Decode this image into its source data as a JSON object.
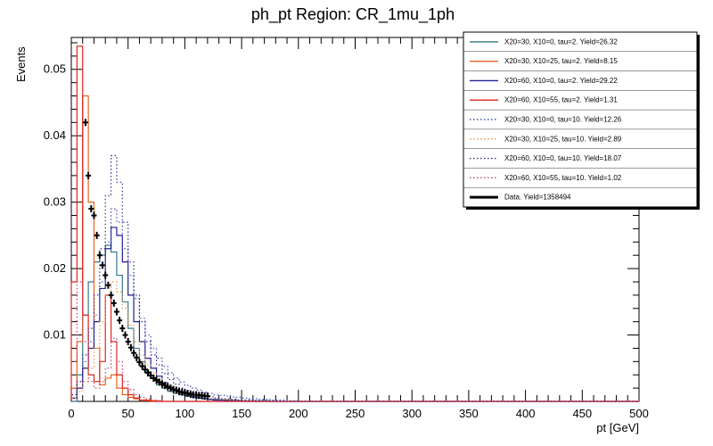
{
  "chart_data": {
    "type": "line",
    "subtype": "root-style step histograms with data points",
    "title": "ph_pt Region: CR_1mu_1ph",
    "xlabel": "pt [GeV]",
    "ylabel": "Events",
    "xlim": [
      0,
      500
    ],
    "ylim": [
      0,
      0.0548
    ],
    "grid": false,
    "legend_position": "top-right",
    "background": "#ffffff",
    "frame_color": "#000000",
    "xticks": {
      "major": [
        0,
        50,
        100,
        150,
        200,
        250,
        300,
        350,
        400,
        450,
        500
      ],
      "labels": [
        "0",
        "50",
        "100",
        "150",
        "200",
        "250",
        "300",
        "350",
        "400",
        "450",
        "500"
      ],
      "minor_step": 10
    },
    "yticks": {
      "major": [
        0.01,
        0.02,
        0.03,
        0.04,
        0.05
      ],
      "labels": [
        "0.01",
        "0.02",
        "0.03",
        "0.04",
        "0.05"
      ],
      "minor_step": 0.002
    },
    "bin_edges": {
      "start": 0,
      "width": 5,
      "count": 40
    },
    "series": [
      {
        "name": "X20=30, X10=0, tau=2. Yield=26.32",
        "type": "hist",
        "style": "solid",
        "color": "#35798c",
        "values": [
          0,
          0.004,
          0.013,
          0.018,
          0.021,
          0.022,
          0.0235,
          0.0225,
          0.019,
          0.015,
          0.011,
          0.008,
          0.006,
          0.0045,
          0.0035,
          0.0025,
          0.002,
          0.0015,
          0.0012,
          0.001,
          0.0008,
          0.0006,
          0.0005,
          0.0004,
          0.0003,
          0.0003,
          0.0002,
          0.0002,
          0.0002,
          0.0001,
          0.0001,
          0.0001,
          0.0001,
          0.0001,
          0.0001,
          0,
          0,
          0,
          0,
          0
        ]
      },
      {
        "name": "X20=30, X10=25, tau=2. Yield=8.15",
        "type": "hist",
        "style": "solid",
        "color": "#e8641f",
        "values": [
          0.002,
          0.009,
          0.046,
          0.03,
          0.008,
          0.0025,
          0.0035,
          0.004,
          0.002,
          0.001,
          0.0006,
          0.0004,
          0.0002,
          0.0002,
          0.0001,
          0.0001,
          0,
          0,
          0,
          0,
          0,
          0,
          0,
          0,
          0,
          0,
          0,
          0,
          0,
          0,
          0,
          0,
          0,
          0,
          0,
          0,
          0,
          0,
          0,
          0
        ]
      },
      {
        "name": "X20=60, X10=0, tau=2. Yield=29.22",
        "type": "hist",
        "style": "solid",
        "color": "#1f1f8f",
        "values": [
          0.0005,
          0.002,
          0.005,
          0.008,
          0.012,
          0.017,
          0.023,
          0.0262,
          0.025,
          0.021,
          0.016,
          0.012,
          0.009,
          0.0065,
          0.005,
          0.0038,
          0.0028,
          0.0021,
          0.0016,
          0.0012,
          0.0009,
          0.0007,
          0.0005,
          0.0004,
          0.0003,
          0.0002,
          0.0002,
          0.0001,
          0.0001,
          0.0001,
          0,
          0,
          0,
          0,
          0,
          0,
          0,
          0,
          0,
          0
        ]
      },
      {
        "name": "X20=60, X10=55, tau=2. Yield=1.31",
        "type": "hist",
        "style": "solid",
        "color": "#e02519",
        "values": [
          0.018,
          0.0535,
          0.013,
          0.004,
          0.003,
          0.006,
          0.016,
          0.009,
          0.004,
          0.002,
          0.001,
          0.0005,
          0.0002,
          0.0001,
          0,
          0,
          0,
          0,
          0,
          0,
          0,
          0,
          0,
          0,
          0,
          0,
          0,
          0,
          0,
          0,
          0,
          0,
          0,
          0,
          0,
          0,
          0,
          0,
          0,
          0
        ]
      },
      {
        "name": "X20=30, X10=0, tau=10. Yield=12.26",
        "type": "hist",
        "style": "dotted",
        "color": "#4050c0",
        "values": [
          0.001,
          0.003,
          0.006,
          0.009,
          0.013,
          0.018,
          0.024,
          0.029,
          0.027,
          0.023,
          0.019,
          0.0155,
          0.0125,
          0.01,
          0.008,
          0.0065,
          0.0053,
          0.0043,
          0.0035,
          0.0029,
          0.0024,
          0.002,
          0.0017,
          0.0014,
          0.0012,
          0.001,
          0.0009,
          0.0008,
          0.0007,
          0.0006,
          0.0005,
          0.0004,
          0.0004,
          0.0003,
          0.0003,
          0.0002,
          0.0002,
          0.0002,
          0.0001,
          0.0001
        ]
      },
      {
        "name": "X20=30, X10=25, tau=10. Yield=2.89",
        "type": "hist",
        "style": "dotted",
        "color": "#ef9240",
        "values": [
          0.0005,
          0.0015,
          0.003,
          0.005,
          0.008,
          0.012,
          0.016,
          0.018,
          0.0165,
          0.014,
          0.0115,
          0.009,
          0.007,
          0.0055,
          0.0043,
          0.0034,
          0.0027,
          0.0021,
          0.0017,
          0.0013,
          0.0011,
          0.0009,
          0.0007,
          0.0006,
          0.0005,
          0.0004,
          0.0003,
          0.0003,
          0.0002,
          0.0002,
          0.0001,
          0.0001,
          0.0001,
          0.0001,
          0,
          0,
          0,
          0,
          0,
          0
        ]
      },
      {
        "name": "X20=60, X10=0, tau=10. Yield=18.07",
        "type": "hist",
        "style": "dotted",
        "color": "#3a2d92",
        "values": [
          0.001,
          0.003,
          0.007,
          0.011,
          0.016,
          0.023,
          0.031,
          0.037,
          0.033,
          0.027,
          0.021,
          0.016,
          0.012,
          0.009,
          0.007,
          0.0055,
          0.0042,
          0.0033,
          0.0026,
          0.002,
          0.0016,
          0.0013,
          0.001,
          0.0008,
          0.0007,
          0.0005,
          0.0004,
          0.0004,
          0.0003,
          0.0002,
          0.0002,
          0.0002,
          0.0001,
          0.0001,
          0.0001,
          0.0001,
          0,
          0,
          0,
          0
        ]
      },
      {
        "name": "X20=60, X10=55, tau=10. Yield=1.02",
        "type": "hist",
        "style": "dotted",
        "color": "#c04080",
        "values": [
          0.006,
          0.018,
          0.009,
          0.003,
          0.002,
          0.003,
          0.005,
          0.0095,
          0.006,
          0.003,
          0.0018,
          0.001,
          0.0006,
          0.0004,
          0.0002,
          0.0001,
          0,
          0,
          0,
          0,
          0,
          0,
          0,
          0,
          0,
          0,
          0,
          0,
          0,
          0,
          0,
          0,
          0,
          0,
          0,
          0,
          0,
          0,
          0,
          0
        ]
      },
      {
        "name": "Data. Yield=1358494",
        "type": "points",
        "style": "cross-markers",
        "color": "#000000",
        "points": [
          [
            12.5,
            0.042
          ],
          [
            15,
            0.034
          ],
          [
            17.5,
            0.029
          ],
          [
            20,
            0.028
          ],
          [
            22.5,
            0.025
          ],
          [
            25,
            0.022
          ],
          [
            27.5,
            0.0205
          ],
          [
            30,
            0.019
          ],
          [
            32.5,
            0.0175
          ],
          [
            35,
            0.016
          ],
          [
            37.5,
            0.0148
          ],
          [
            40,
            0.0135
          ],
          [
            42.5,
            0.0122
          ],
          [
            45,
            0.011
          ],
          [
            47.5,
            0.01
          ],
          [
            50,
            0.009
          ],
          [
            52.5,
            0.0081
          ],
          [
            55,
            0.0073
          ],
          [
            57.5,
            0.0066
          ],
          [
            60,
            0.0059
          ],
          [
            62.5,
            0.0053
          ],
          [
            65,
            0.0048
          ],
          [
            67.5,
            0.0043
          ],
          [
            70,
            0.0039
          ],
          [
            72.5,
            0.0035
          ],
          [
            75,
            0.0032
          ],
          [
            77.5,
            0.0029
          ],
          [
            80,
            0.0026
          ],
          [
            82.5,
            0.0024
          ],
          [
            85,
            0.0022
          ],
          [
            87.5,
            0.002
          ],
          [
            90,
            0.0018
          ],
          [
            92.5,
            0.0017
          ],
          [
            95,
            0.0015
          ],
          [
            97.5,
            0.0014
          ],
          [
            100,
            0.0013
          ],
          [
            102.5,
            0.0012
          ],
          [
            105,
            0.0011
          ],
          [
            107.5,
            0.001
          ],
          [
            110,
            0.001
          ],
          [
            112.5,
            0.0009
          ],
          [
            115,
            0.0009
          ],
          [
            117.5,
            0.0008
          ],
          [
            120,
            0.0008
          ]
        ]
      }
    ]
  }
}
